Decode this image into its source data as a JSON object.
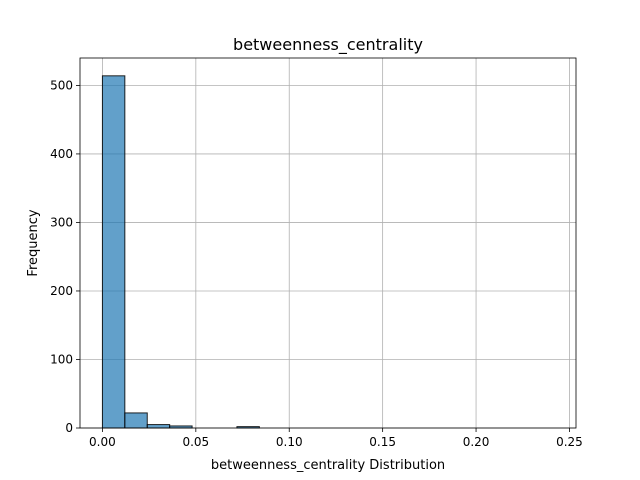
{
  "chart_data": {
    "type": "bar",
    "title": "betweenness_centrality",
    "xlabel": "betweenness_centrality Distribution",
    "ylabel": "Frequency",
    "xlim": [
      -0.012,
      0.2535
    ],
    "ylim": [
      0,
      540
    ],
    "grid": true,
    "bin_edges": [
      0.0,
      0.012,
      0.024,
      0.036,
      0.048,
      0.06,
      0.072,
      0.084,
      0.096,
      0.108,
      0.12,
      0.132,
      0.144,
      0.156,
      0.168,
      0.18,
      0.192,
      0.204,
      0.216,
      0.228,
      0.24
    ],
    "values": [
      514,
      22,
      5,
      3,
      0,
      0,
      2,
      0,
      0,
      0,
      0,
      0,
      0,
      0,
      0,
      0,
      0,
      0,
      0,
      0
    ],
    "x_ticks": [
      0.0,
      0.05,
      0.1,
      0.15,
      0.2,
      0.25
    ],
    "x_tick_labels": [
      "0.00",
      "0.05",
      "0.10",
      "0.15",
      "0.20",
      "0.25"
    ],
    "y_ticks": [
      0,
      100,
      200,
      300,
      400,
      500
    ],
    "y_tick_labels": [
      "0",
      "100",
      "200",
      "300",
      "400",
      "500"
    ],
    "colors": {
      "bar": "#1f77b4",
      "grid": "#b0b0b0"
    }
  }
}
